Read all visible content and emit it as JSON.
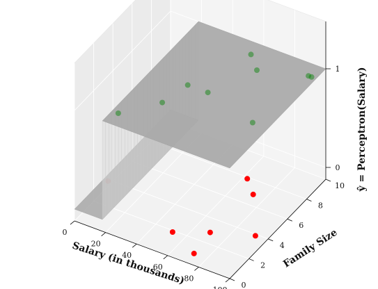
{
  "chart_data": {
    "type": "scatter",
    "projection": "3d",
    "xlabel": "Salary (in thousands)",
    "ylabel": "Family Size",
    "zlabel": "ŷ = Perceptron(Salary)",
    "xlim": [
      0,
      100
    ],
    "ylim": [
      0,
      10
    ],
    "zlim": [
      0,
      1
    ],
    "xticks": [
      "0",
      "20",
      "40",
      "60",
      "80",
      "100"
    ],
    "yticks": [
      "0",
      "2",
      "4",
      "6",
      "8",
      "10"
    ],
    "zticks": [
      "0",
      "1"
    ],
    "decision_threshold_salary": 18,
    "surface": {
      "z_low": 0,
      "z_high": 1,
      "color": "#a8a8a8"
    },
    "grid": true,
    "series": [
      {
        "color": "#008000",
        "points": [
          {
            "x": 22,
            "y": 1,
            "z": 1
          },
          {
            "x": 58,
            "y": 9,
            "z": 1
          },
          {
            "x": 42,
            "y": 5,
            "z": 1
          },
          {
            "x": 38,
            "y": 3,
            "z": 1
          },
          {
            "x": 55,
            "y": 5,
            "z": 1
          },
          {
            "x": 68,
            "y": 8,
            "z": 1
          },
          {
            "x": 90,
            "y": 4,
            "z": 1
          },
          {
            "x": 95,
            "y": 9,
            "z": 1
          },
          {
            "x": 97,
            "y": 9,
            "z": 1
          }
        ]
      },
      {
        "color": "#ff0000",
        "points": [
          {
            "x": 3,
            "y": 3,
            "z": 0
          },
          {
            "x": 57,
            "y": 1,
            "z": 0
          },
          {
            "x": 75,
            "y": 2,
            "z": 0
          },
          {
            "x": 77,
            "y": 0,
            "z": 0
          },
          {
            "x": 68,
            "y": 7,
            "z": 0
          },
          {
            "x": 78,
            "y": 6,
            "z": 0
          },
          {
            "x": 98,
            "y": 3,
            "z": 0
          }
        ]
      }
    ]
  }
}
